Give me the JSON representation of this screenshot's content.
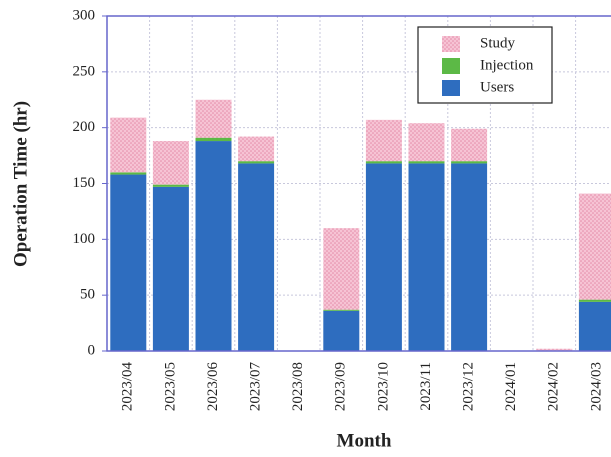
{
  "chart_data": {
    "type": "stacked_bar",
    "x_label": "Month",
    "y_label": "Operation Time (hr)",
    "categories": [
      "2023/04",
      "2023/05",
      "2023/06",
      "2023/07",
      "2023/08",
      "2023/09",
      "2023/10",
      "2023/11",
      "2023/12",
      "2024/01",
      "2024/02",
      "2024/03"
    ],
    "series": [
      {
        "name": "Users",
        "color": "#2e6dbf",
        "text_color": "#2a6ac4",
        "values": [
          158,
          147,
          188,
          168,
          0,
          36,
          168,
          168,
          168,
          0,
          0,
          44
        ]
      },
      {
        "name": "Injection",
        "color": "#5cb946",
        "text_color": "#3cb32c",
        "values": [
          2,
          2,
          3,
          2,
          0,
          1,
          2,
          2,
          2,
          0,
          0,
          2
        ]
      },
      {
        "name": "Study",
        "color": "#f4b8cc",
        "text_color": "#e0245e",
        "values": [
          49,
          39,
          34,
          22,
          0,
          73,
          37,
          34,
          29,
          0,
          2,
          95
        ]
      }
    ],
    "ylim": [
      0,
      300
    ],
    "yticks": [
      0,
      50,
      100,
      150,
      200,
      250,
      300
    ],
    "grid": true,
    "legend": "upper right"
  }
}
